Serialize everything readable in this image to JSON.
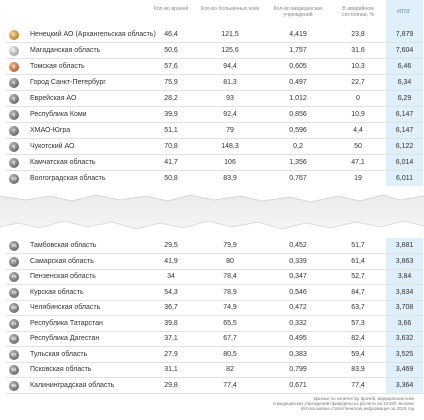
{
  "headers": {
    "doctors": "Кол-во врачей",
    "beds": "Кол-во больничных коек",
    "institutions": "Кол-во медицинских учреждений",
    "emergency": "В аварийном состоянии, %",
    "total": "ИТОГ"
  },
  "top_rows": [
    {
      "rank": "1",
      "name": "Ненецкий АО (Архангельская область)",
      "doctors": "46,4",
      "beds": "121,5",
      "institutions": "4,419",
      "emergency": "23,8",
      "total": "7,879"
    },
    {
      "rank": "2",
      "name": "Магаданская область",
      "doctors": "50,6",
      "beds": "125,6",
      "institutions": "1,757",
      "emergency": "31,6",
      "total": "7,604"
    },
    {
      "rank": "3",
      "name": "Томская область",
      "doctors": "57,6",
      "beds": "94,4",
      "institutions": "0,605",
      "emergency": "10,3",
      "total": "6,46"
    },
    {
      "rank": "4",
      "name": "Город Санкт-Петербург",
      "doctors": "75,9",
      "beds": "81,3",
      "institutions": "0,497",
      "emergency": "22,7",
      "total": "6,34"
    },
    {
      "rank": "5",
      "name": "Еврейская АО",
      "doctors": "28,2",
      "beds": "93",
      "institutions": "1,012",
      "emergency": "0",
      "total": "6,29"
    },
    {
      "rank": "6",
      "name": "Республика Коми",
      "doctors": "39,9",
      "beds": "92,4",
      "institutions": "0,856",
      "emergency": "10,9",
      "total": "6,147"
    },
    {
      "rank": "7",
      "name": "ХМАО-Югра",
      "doctors": "51,1",
      "beds": "79",
      "institutions": "0,596",
      "emergency": "4,4",
      "total": "6,147"
    },
    {
      "rank": "8",
      "name": "Чукотский АО",
      "doctors": "70,8",
      "beds": "148,3",
      "institutions": "0,2",
      "emergency": "50",
      "total": "6,122"
    },
    {
      "rank": "9",
      "name": "Камчатская область",
      "doctors": "41,7",
      "beds": "106",
      "institutions": "1,356",
      "emergency": "47,1",
      "total": "6,014"
    },
    {
      "rank": "10",
      "name": "Волгоградская область",
      "doctors": "50,8",
      "beds": "83,9",
      "institutions": "0,767",
      "emergency": "19",
      "total": "6,011"
    }
  ],
  "bottom_rows": [
    {
      "rank": "76",
      "name": "Тамбовская область",
      "doctors": "29,5",
      "beds": "79,9",
      "institutions": "0,452",
      "emergency": "51,7",
      "total": "3,881"
    },
    {
      "rank": "77",
      "name": "Самарская область",
      "doctors": "41,9",
      "beds": "80",
      "institutions": "0,339",
      "emergency": "61,4",
      "total": "3,863"
    },
    {
      "rank": "78",
      "name": "Пензенская область",
      "doctors": "34",
      "beds": "78,4",
      "institutions": "0,347",
      "emergency": "52,7",
      "total": "3,84"
    },
    {
      "rank": "79",
      "name": "Курская область",
      "doctors": "54,3",
      "beds": "78,9",
      "institutions": "0,546",
      "emergency": "84,7",
      "total": "3,834"
    },
    {
      "rank": "80",
      "name": "Челябинская область",
      "doctors": "36,7",
      "beds": "74,9",
      "institutions": "0,472",
      "emergency": "63,7",
      "total": "3,708"
    },
    {
      "rank": "81",
      "name": "Республика Татарстан",
      "doctors": "39,8",
      "beds": "65,5",
      "institutions": "0,332",
      "emergency": "57,3",
      "total": "3,66"
    },
    {
      "rank": "82",
      "name": "Республика Дагестан",
      "doctors": "37,1",
      "beds": "67,7",
      "institutions": "0,495",
      "emergency": "82,4",
      "total": "3,632"
    },
    {
      "rank": "83",
      "name": "Тульская область",
      "doctors": "27,9",
      "beds": "80,5",
      "institutions": "0,383",
      "emergency": "59,4",
      "total": "3,525"
    },
    {
      "rank": "84",
      "name": "Псковская область",
      "doctors": "31,1",
      "beds": "82",
      "institutions": "0,799",
      "emergency": "83,9",
      "total": "3,469"
    },
    {
      "rank": "85",
      "name": "Калининградская область",
      "doctors": "29,8",
      "beds": "77,4",
      "institutions": "0,671",
      "emergency": "77,4",
      "total": "3,364"
    }
  ],
  "footnote": {
    "line1": "Данные по количеству врачей, медицинских коек",
    "line2": "и медицинских учреждений приведены из расчета на 10 000 человек",
    "line3": "Использована статистическая информация за 2019 год"
  }
}
